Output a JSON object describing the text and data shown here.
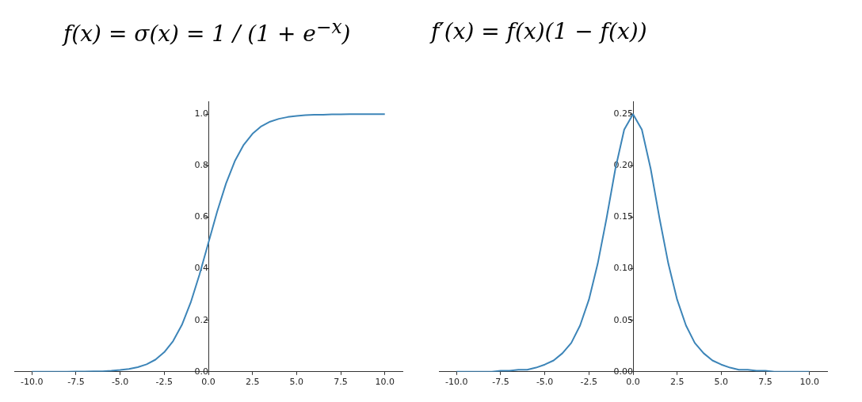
{
  "chart_data": [
    {
      "type": "line",
      "title": "f(x) = σ(x) = 1 / (1 + e$^{−x}$)",
      "xlim": [
        -11,
        11
      ],
      "ylim": [
        0,
        1.05
      ],
      "xticks": [
        {
          "value": -10,
          "label": "-10.0"
        },
        -7.5,
        {
          "value": -5,
          "label": "-5.0"
        },
        -2.5,
        {
          "value": 0,
          "label": "0.0"
        },
        2.5,
        {
          "value": 5,
          "label": "5.0"
        },
        7.5,
        {
          "value": 10,
          "label": "10.0"
        }
      ],
      "yticks": [
        {
          "value": 0,
          "label": "0.0"
        },
        0.2,
        0.4,
        0.6,
        0.8,
        {
          "value": 1,
          "label": "1.0"
        }
      ],
      "grid": false,
      "legend": false,
      "marker": "none",
      "series": [
        {
          "color": "#3d85b8",
          "x": [
            -10,
            -9.5,
            -9,
            -8.5,
            -8,
            -7.5,
            -7,
            -6.5,
            -6,
            -5.5,
            -5,
            -4.5,
            -4,
            -3.5,
            -3,
            -2.5,
            -2,
            -1.5,
            -1,
            -0.5,
            0,
            0.5,
            1,
            1.5,
            2,
            2.5,
            3,
            3.5,
            4,
            4.5,
            5,
            5.5,
            6,
            6.5,
            7,
            7.5,
            8,
            8.5,
            9,
            9.5,
            10
          ],
          "values": [
            0.0,
            0.0,
            0.0,
            0.0,
            0.0,
            0.001,
            0.001,
            0.002,
            0.002,
            0.004,
            0.007,
            0.011,
            0.018,
            0.029,
            0.047,
            0.076,
            0.119,
            0.182,
            0.269,
            0.378,
            0.5,
            0.622,
            0.731,
            0.818,
            0.881,
            0.924,
            0.953,
            0.971,
            0.982,
            0.989,
            0.993,
            0.996,
            0.998,
            0.998,
            0.999,
            0.999,
            1.0,
            1.0,
            1.0,
            1.0,
            1.0
          ]
        }
      ]
    },
    {
      "type": "line",
      "title": "f′(x) = f(x)(1 − f(x))",
      "xlim": [
        -11,
        11
      ],
      "ylim": [
        0,
        0.2625
      ],
      "xticks": [
        {
          "value": -10,
          "label": "-10.0"
        },
        -7.5,
        {
          "value": -5,
          "label": "-5.0"
        },
        -2.5,
        {
          "value": 0,
          "label": "0.0"
        },
        2.5,
        {
          "value": 5,
          "label": "5.0"
        },
        7.5,
        {
          "value": 10,
          "label": "10.0"
        }
      ],
      "yticks": [
        {
          "value": 0,
          "label": "0.00"
        },
        0.05,
        {
          "value": 0.1,
          "label": "0.10"
        },
        0.15,
        {
          "value": 0.2,
          "label": "0.20"
        },
        0.25
      ],
      "grid": false,
      "legend": false,
      "marker": "none",
      "series": [
        {
          "color": "#3d85b8",
          "x": [
            -10,
            -9.5,
            -9,
            -8.5,
            -8,
            -7.5,
            -7,
            -6.5,
            -6,
            -5.5,
            -5,
            -4.5,
            -4,
            -3.5,
            -3,
            -2.5,
            -2,
            -1.5,
            -1,
            -0.5,
            0,
            0.5,
            1,
            1.5,
            2,
            2.5,
            3,
            3.5,
            4,
            4.5,
            5,
            5.5,
            6,
            6.5,
            7,
            7.5,
            8,
            8.5,
            9,
            9.5,
            10
          ],
          "values": [
            0.0,
            0.0,
            0.0,
            0.0,
            0.0,
            0.001,
            0.001,
            0.002,
            0.002,
            0.004,
            0.007,
            0.011,
            0.018,
            0.028,
            0.045,
            0.07,
            0.105,
            0.149,
            0.197,
            0.235,
            0.25,
            0.235,
            0.197,
            0.149,
            0.105,
            0.07,
            0.045,
            0.028,
            0.018,
            0.011,
            0.007,
            0.004,
            0.002,
            0.002,
            0.001,
            0.001,
            0.0,
            0.0,
            0.0,
            0.0,
            0.0
          ]
        }
      ]
    }
  ]
}
